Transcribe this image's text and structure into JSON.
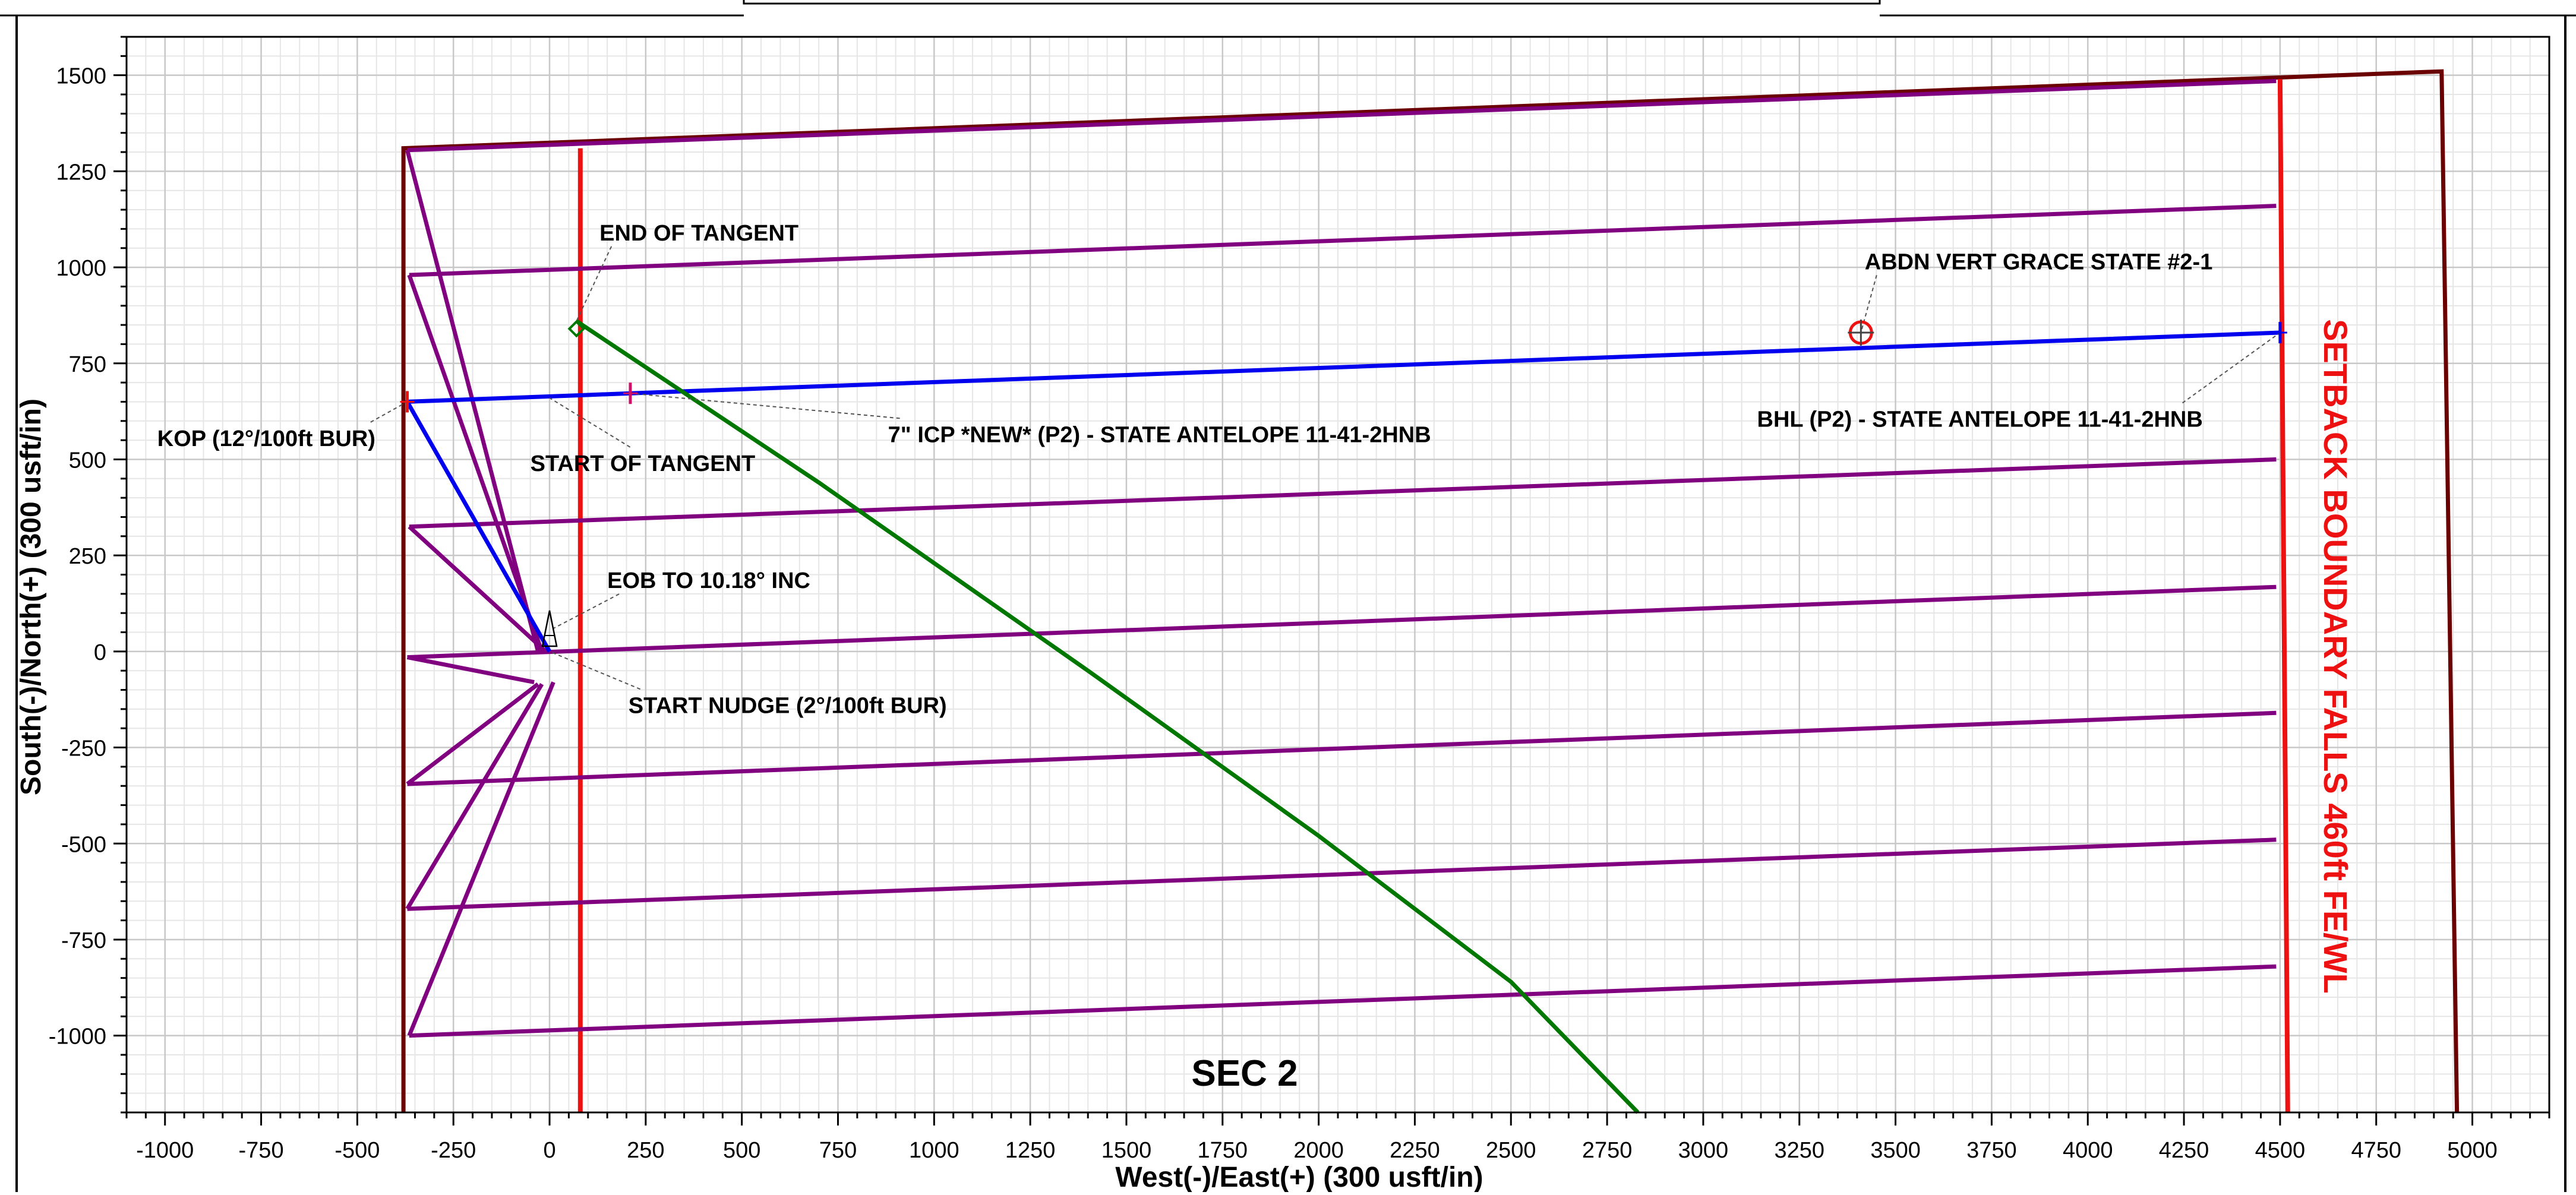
{
  "chart_data": {
    "type": "line",
    "title": "SEC 2",
    "xlabel": "West(-)/East(+) (300 usft/in)",
    "ylabel": "South(-)/North(+) (300 usft/in)",
    "xlim": [
      -1100,
      5200
    ],
    "ylim": [
      -1200,
      1600
    ],
    "xticks": [
      -1000,
      -750,
      -500,
      -250,
      0,
      250,
      500,
      750,
      1000,
      1250,
      1500,
      1750,
      2000,
      2250,
      2500,
      2750,
      3000,
      3250,
      3500,
      3750,
      4000,
      4250,
      4500,
      4750,
      5000
    ],
    "yticks": [
      1500,
      1250,
      1000,
      750,
      500,
      250,
      0,
      -250,
      -500,
      -750,
      -1000
    ],
    "grid": true,
    "series": [
      {
        "color": "#0000ee",
        "points": [
          [
            0,
            0
          ],
          [
            -370,
            650
          ],
          [
            80,
            667
          ],
          [
            210,
            672
          ],
          [
            4500,
            830
          ]
        ]
      },
      {
        "color": "#007700",
        "points": [
          [
            70,
            860
          ],
          [
            700,
            440
          ],
          [
            1400,
            -50
          ],
          [
            2000,
            -480
          ],
          [
            2500,
            -860
          ],
          [
            2830,
            -1200
          ]
        ]
      }
    ],
    "lines": [
      {
        "group": "section-boundary",
        "color": "#6b0000",
        "points": [
          [
            -380,
            -1200
          ],
          [
            -380,
            1310
          ],
          [
            4920,
            1510
          ],
          [
            4960,
            -1200
          ]
        ]
      },
      {
        "group": "setback-line",
        "color": "#ee1111",
        "points": [
          [
            80,
            -1200
          ],
          [
            80,
            1310
          ]
        ]
      },
      {
        "group": "setback-line",
        "color": "#ee1111",
        "points": [
          [
            4500,
            1490
          ],
          [
            4520,
            -1200
          ]
        ]
      },
      {
        "group": "offset-well",
        "color": "#800080",
        "points": [
          [
            -370,
            1305
          ],
          [
            4490,
            1485
          ]
        ]
      },
      {
        "group": "offset-well",
        "color": "#800080",
        "points": [
          [
            -365,
            980
          ],
          [
            4490,
            1160
          ]
        ]
      },
      {
        "group": "offset-well",
        "color": "#800080",
        "points": [
          [
            -365,
            325
          ],
          [
            4490,
            500
          ]
        ]
      },
      {
        "group": "offset-well",
        "color": "#800080",
        "points": [
          [
            -370,
            -15
          ],
          [
            4490,
            168
          ]
        ]
      },
      {
        "group": "offset-well",
        "color": "#800080",
        "points": [
          [
            -370,
            -345
          ],
          [
            4490,
            -160
          ]
        ]
      },
      {
        "group": "offset-well",
        "color": "#800080",
        "points": [
          [
            -370,
            -670
          ],
          [
            4490,
            -490
          ]
        ]
      },
      {
        "group": "offset-well",
        "color": "#800080",
        "points": [
          [
            -365,
            -1000
          ],
          [
            4490,
            -820
          ]
        ]
      },
      {
        "group": "offset-well",
        "color": "#800080",
        "points": [
          [
            -370,
            1305
          ],
          [
            -30,
            0
          ]
        ]
      },
      {
        "group": "offset-well",
        "color": "#800080",
        "points": [
          [
            -365,
            980
          ],
          [
            -20,
            0
          ]
        ]
      },
      {
        "group": "offset-well",
        "color": "#800080",
        "points": [
          [
            -365,
            325
          ],
          [
            -10,
            0
          ]
        ]
      },
      {
        "group": "offset-well",
        "color": "#800080",
        "points": [
          [
            -370,
            -15
          ],
          [
            -40,
            -80
          ]
        ]
      },
      {
        "group": "offset-well",
        "color": "#800080",
        "points": [
          [
            -370,
            -345
          ],
          [
            -30,
            -85
          ]
        ]
      },
      {
        "group": "offset-well",
        "color": "#800080",
        "points": [
          [
            -370,
            -670
          ],
          [
            -20,
            -85
          ]
        ]
      },
      {
        "group": "offset-well",
        "color": "#800080",
        "points": [
          [
            -365,
            -1000
          ],
          [
            10,
            -80
          ]
        ]
      }
    ],
    "annotations": [
      {
        "text": "END OF TANGENT",
        "x": 130,
        "y": 1070,
        "anchor_x": 70,
        "anchor_y": 860
      },
      {
        "text": "ABDN VERT GRACE STATE #2-1",
        "x": 3420,
        "y": 995,
        "anchor_x": 3410,
        "anchor_y": 830
      },
      {
        "text": "KOP (12°/100ft BUR)",
        "x": -1020,
        "y": 535,
        "anchor_x": -370,
        "anchor_y": 650
      },
      {
        "text": "START OF TANGENT",
        "x": -50,
        "y": 470,
        "anchor_x": 0,
        "anchor_y": 660
      },
      {
        "text": "7\" ICP *NEW* (P2) - STATE ANTELOPE 11-41-2HNB",
        "x": 880,
        "y": 545,
        "anchor_x": 210,
        "anchor_y": 672
      },
      {
        "text": "BHL (P2) - STATE ANTELOPE 11-41-2HNB",
        "x": 3140,
        "y": 585,
        "anchor_x": 4500,
        "anchor_y": 830
      },
      {
        "text": "EOB TO 10.18° INC",
        "x": 150,
        "y": 165,
        "anchor_x": 10,
        "anchor_y": 60
      },
      {
        "text": "START NUDGE (2°/100ft BUR)",
        "x": 205,
        "y": -160,
        "anchor_x": 0,
        "anchor_y": 0
      }
    ],
    "markers": [
      {
        "kind": "circle-cross",
        "x": 3410,
        "y": 830,
        "color": "#ee1111"
      },
      {
        "kind": "tick",
        "x": -370,
        "y": 650,
        "color": "#ee1111"
      },
      {
        "kind": "tick",
        "x": 210,
        "y": 672,
        "color": "#cc1166"
      },
      {
        "kind": "tick",
        "x": 4500,
        "y": 830,
        "color": "#0000ee"
      },
      {
        "kind": "diamond",
        "x": 70,
        "y": 840,
        "color": "#007700"
      }
    ],
    "side_label": "SETBACK BOUNDARY FALLS 460ft FE/WL",
    "side_label_color": "#ee1111",
    "colors": {
      "grid_major": "#c8c8c8",
      "grid_minor": "#e6e6e6",
      "axis": "#000000"
    }
  }
}
